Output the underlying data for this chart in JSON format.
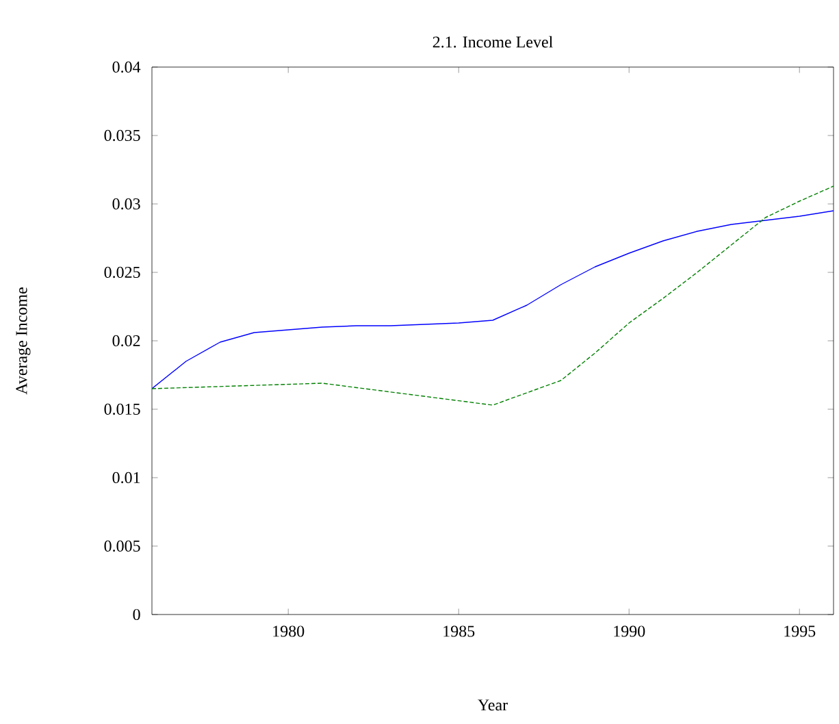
{
  "chart_data": {
    "type": "line",
    "title": "2.1. Income Level",
    "xlabel": "Year",
    "ylabel": "Average Income",
    "xlim": [
      1976,
      1996
    ],
    "xticks": [
      1980,
      1985,
      1990,
      1995
    ],
    "ylim": [
      0,
      0.04
    ],
    "yticks": [
      0,
      0.005,
      0.01,
      0.015,
      0.02,
      0.025,
      0.03,
      0.035,
      0.04
    ],
    "series": [
      {
        "color": "#0000ff",
        "line_style": "solid",
        "x": [
          1976,
          1977,
          1978,
          1979,
          1980,
          1981,
          1982,
          1983,
          1984,
          1985,
          1986,
          1987,
          1988,
          1989,
          1990,
          1991,
          1992,
          1993,
          1994,
          1995,
          1996
        ],
        "values": [
          0.0165,
          0.0185,
          0.0199,
          0.0206,
          0.0208,
          0.021,
          0.0211,
          0.0211,
          0.0212,
          0.0213,
          0.0215,
          0.0226,
          0.0241,
          0.0254,
          0.0264,
          0.0273,
          0.028,
          0.0285,
          0.0288,
          0.0291,
          0.0295
        ]
      },
      {
        "color": "#008000",
        "line_style": "dashed",
        "x": [
          1976,
          1981,
          1986,
          1988,
          1989,
          1990,
          1991,
          1992,
          1993,
          1994,
          1995,
          1996
        ],
        "values": [
          0.0165,
          0.0169,
          0.0153,
          0.0171,
          0.0191,
          0.0213,
          0.0231,
          0.025,
          0.027,
          0.029,
          0.0302,
          0.0313
        ]
      }
    ]
  }
}
